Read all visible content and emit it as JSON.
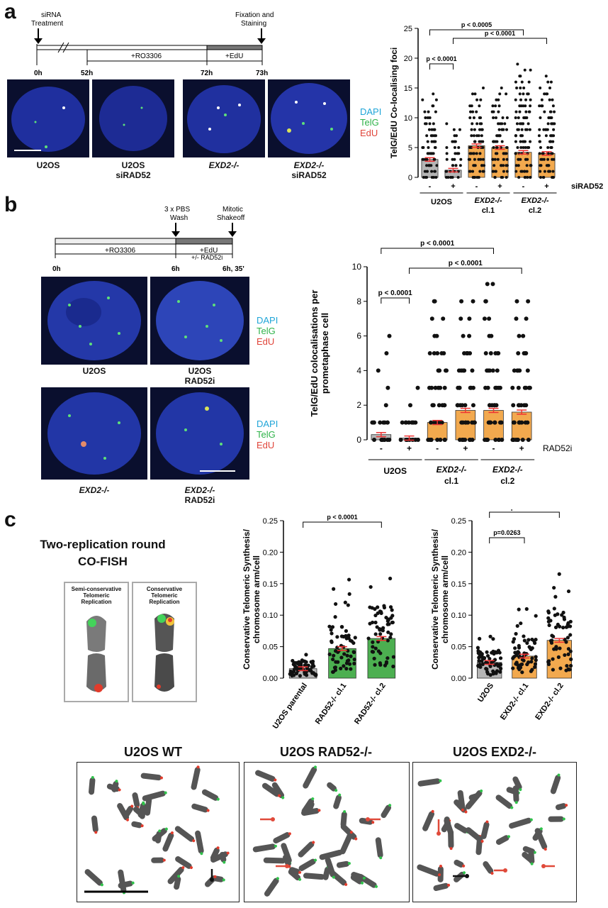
{
  "panels": {
    "a": {
      "letter": "a",
      "timeline": {
        "labels": [
          "siRNA",
          "Treatment"
        ],
        "fixation": [
          "Fixation and",
          "Staining"
        ],
        "times": [
          "0h",
          "52h",
          "72h",
          "73h"
        ],
        "ro": "+RO3306",
        "edu": "+EdU"
      },
      "images": [
        {
          "cap1": "U2OS",
          "cap2": ""
        },
        {
          "cap1": "U2OS",
          "cap2": "siRAD52"
        },
        {
          "cap1": "EXD2-/-",
          "cap2": ""
        },
        {
          "cap1": "EXD2-/-",
          "cap2": "siRAD52"
        }
      ],
      "legend": [
        "DAPI",
        "TelG",
        "EdU"
      ]
    },
    "b": {
      "letter": "b",
      "timeline": {
        "wash": [
          "3 x PBS",
          "Wash"
        ],
        "shake": [
          "Mitotic",
          "Shakeoff"
        ],
        "times": [
          "0h",
          "6h",
          "6h, 35'"
        ],
        "ro": "+RO3306",
        "edu": [
          "+EdU",
          "+/- RAD52i"
        ]
      },
      "images": [
        {
          "cap1": "U2OS",
          "cap2": ""
        },
        {
          "cap1": "U2OS",
          "cap2": "RAD52i"
        },
        {
          "cap1": "EXD2-/-",
          "cap2": ""
        },
        {
          "cap1": "EXD2-/-",
          "cap2": "RAD52i"
        }
      ],
      "legend": [
        "DAPI",
        "TelG",
        "EdU"
      ]
    },
    "c": {
      "letter": "c",
      "title": [
        "Two-replication round",
        "CO-FISH"
      ],
      "box1": [
        "Semi-conservative",
        "Telomeric",
        "Replication"
      ],
      "box2": [
        "Conservative",
        "Telomeric",
        "Replication"
      ],
      "metaphases": [
        "U2OS WT",
        "U2OS RAD52-/-",
        "U2OS EXD2-/-"
      ]
    }
  },
  "chart_data": [
    {
      "id": "a",
      "type": "bar",
      "ylabel": "TelG/EdU Co-localising foci",
      "ylim": [
        0,
        25
      ],
      "yticks": [
        0,
        5,
        10,
        15,
        20,
        25
      ],
      "treatment_label": "siRAD52",
      "signs": [
        "-",
        "+",
        "-",
        "+",
        "-",
        "+"
      ],
      "groups": [
        "U2OS",
        "EXD2-/- cl.1",
        "EXD2-/- cl.2"
      ],
      "values": [
        3.0,
        1.2,
        5.3,
        5.0,
        4.2,
        4.0
      ],
      "colors": [
        "#b5b5b5",
        "#b5b5b5",
        "#f2a94e",
        "#f2a94e",
        "#f2a94e",
        "#f2a94e"
      ],
      "pvalues": [
        {
          "label": "p < 0.0001",
          "from": 0,
          "to": 1
        },
        {
          "label": "p < 0.0005",
          "from": 0,
          "to": 4
        },
        {
          "label": "p < 0.0001",
          "from": 1,
          "to": 5
        }
      ]
    },
    {
      "id": "b",
      "type": "bar",
      "ylabel": "TelG/EdU colocalisations per prometaphase cell",
      "ylim": [
        0,
        10
      ],
      "yticks": [
        0,
        2,
        4,
        6,
        8,
        10
      ],
      "treatment_label": "RAD52i",
      "signs": [
        "-",
        "+",
        "-",
        "+",
        "-",
        "+"
      ],
      "groups": [
        "U2OS",
        "EXD2-/- cl.1",
        "EXD2-/- cl.2"
      ],
      "values": [
        0.3,
        0.1,
        1.0,
        1.7,
        1.7,
        1.6
      ],
      "colors": [
        "#b5b5b5",
        "#b5b5b5",
        "#f2a94e",
        "#f2a94e",
        "#f2a94e",
        "#f2a94e"
      ],
      "pvalues": [
        {
          "label": "p < 0.0001",
          "from": 0,
          "to": 1
        },
        {
          "label": "p < 0.0001",
          "from": 0,
          "to": 4
        },
        {
          "label": "p < 0.0001",
          "from": 1,
          "to": 5
        }
      ]
    },
    {
      "id": "c1",
      "type": "bar",
      "ylabel": "Conservative Telomeric Synthesis/ chromosome arm/cell",
      "ylim": [
        0,
        0.25
      ],
      "yticks": [
        0.0,
        0.05,
        0.1,
        0.15,
        0.2,
        0.25
      ],
      "categories": [
        "U2OS parental",
        "RAD52-/- cl.1",
        "RAD52-/- cl.2"
      ],
      "values": [
        0.015,
        0.047,
        0.063
      ],
      "colors": [
        "#b5b5b5",
        "#4caf50",
        "#4caf50"
      ],
      "pvalues": [
        {
          "label": "p < 0.0001",
          "from": 0,
          "to": 2
        }
      ]
    },
    {
      "id": "c2",
      "type": "bar",
      "ylabel": "Conservative Telomeric Synthesis/ chromosome arm/cell",
      "ylim": [
        0,
        0.25
      ],
      "yticks": [
        0.0,
        0.05,
        0.1,
        0.15,
        0.2,
        0.25
      ],
      "categories": [
        "U2OS",
        "EXD2-/- cl.1",
        "EXD2-/- cl.2"
      ],
      "values": [
        0.025,
        0.035,
        0.06
      ],
      "colors": [
        "#b5b5b5",
        "#f2a94e",
        "#f2a94e"
      ],
      "pvalues": [
        {
          "label": "p=0.0263",
          "from": 0,
          "to": 1
        },
        {
          "label": "p<0.0001",
          "from": 0,
          "to": 2
        }
      ]
    }
  ]
}
